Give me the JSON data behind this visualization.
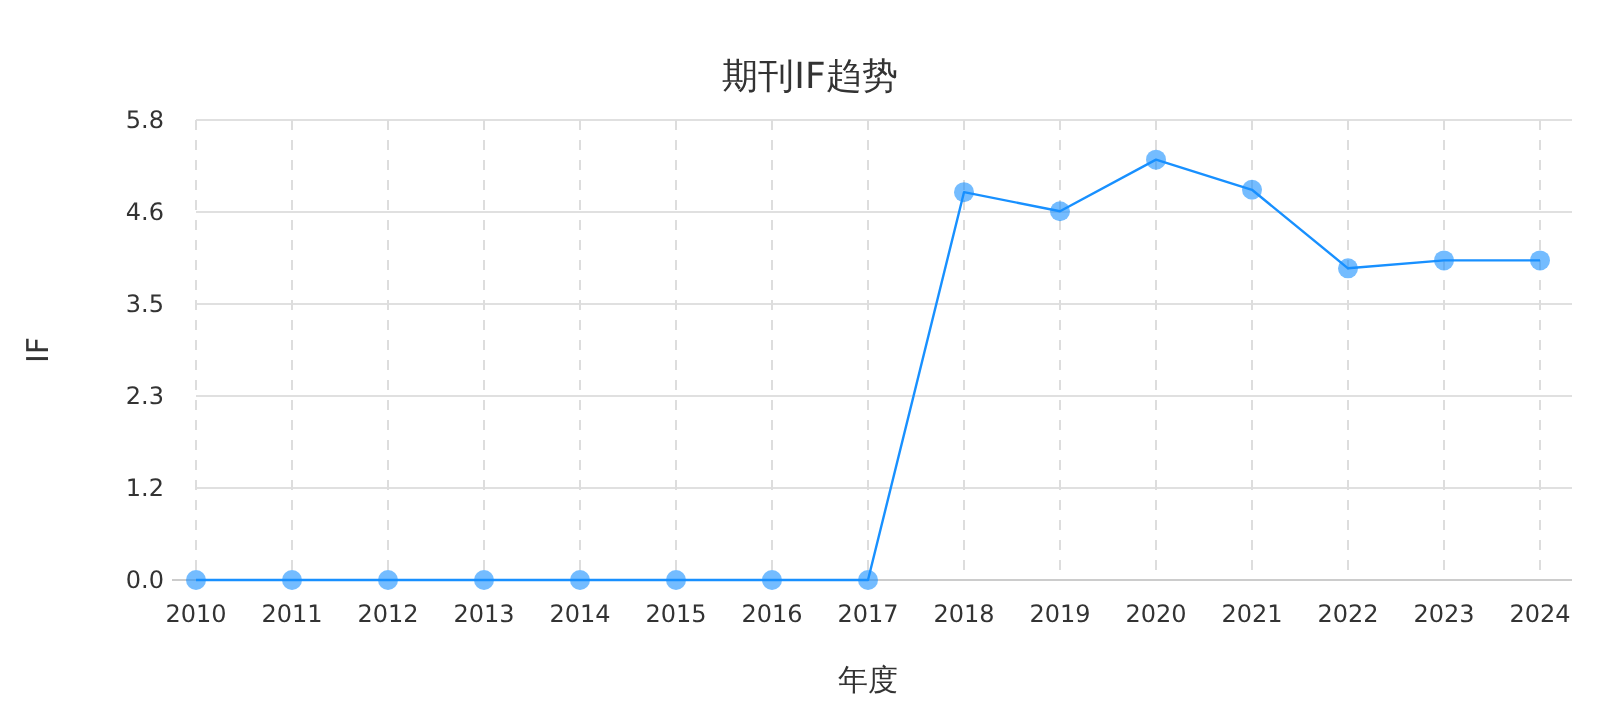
{
  "chart_data": {
    "type": "line",
    "title": "期刊IF趋势",
    "xlabel": "年度",
    "ylabel": "IF",
    "categories": [
      "2010",
      "2011",
      "2012",
      "2013",
      "2014",
      "2015",
      "2016",
      "2017",
      "2018",
      "2019",
      "2020",
      "2021",
      "2022",
      "2023",
      "2024"
    ],
    "series": [
      {
        "color": "#1890ff",
        "values": [
          0,
          0,
          0,
          0,
          0,
          0,
          0,
          0,
          4.89,
          4.65,
          5.3,
          4.92,
          3.93,
          4.03,
          4.03
        ]
      }
    ],
    "ylim": [
      0,
      5.8
    ],
    "yticks": [
      {
        "value": 0,
        "label": "0.0"
      },
      {
        "value": 1.16,
        "label": "1.2"
      },
      {
        "value": 2.32,
        "label": "2.3"
      },
      {
        "value": 3.48,
        "label": "3.5"
      },
      {
        "value": 4.64,
        "label": "4.6"
      },
      {
        "value": 5.8,
        "label": "5.8"
      }
    ],
    "grid": true,
    "marker": "circle",
    "line_style": "solid"
  }
}
